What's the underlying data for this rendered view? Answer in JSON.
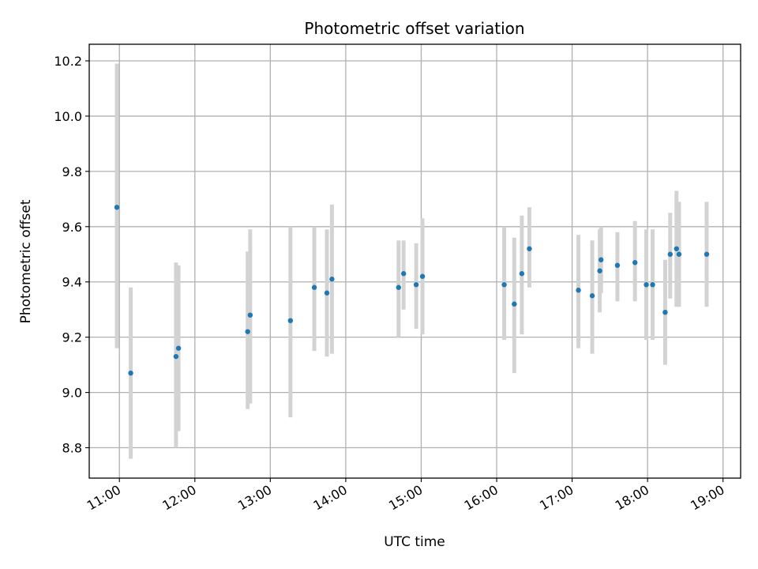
{
  "chart_data": {
    "type": "scatter",
    "title": "Photometric offset variation",
    "xlabel": "UTC time",
    "ylabel": "Photometric offset",
    "grid": true,
    "x_axis_type": "time",
    "xlim": [
      "10:36",
      "19:14"
    ],
    "ylim": [
      8.69,
      10.26
    ],
    "x_ticks": [
      "11:00",
      "12:00",
      "13:00",
      "14:00",
      "15:00",
      "16:00",
      "17:00",
      "18:00",
      "19:00"
    ],
    "y_ticks": [
      "8.8",
      "9.0",
      "9.2",
      "9.4",
      "9.6",
      "9.8",
      "10.0",
      "10.2"
    ],
    "colors": {
      "point": "#1f77b4",
      "errorbar": "#d3d3d3",
      "grid": "#b0b0b0"
    },
    "points": [
      {
        "x": "10:58",
        "y": 9.67,
        "ylow": 9.16,
        "yhigh": 10.19
      },
      {
        "x": "11:09",
        "y": 9.07,
        "ylow": 8.76,
        "yhigh": 9.38
      },
      {
        "x": "11:45",
        "y": 9.13,
        "ylow": 8.8,
        "yhigh": 9.47
      },
      {
        "x": "11:47",
        "y": 9.16,
        "ylow": 8.86,
        "yhigh": 9.46
      },
      {
        "x": "12:42",
        "y": 9.22,
        "ylow": 8.94,
        "yhigh": 9.51
      },
      {
        "x": "12:44",
        "y": 9.28,
        "ylow": 8.96,
        "yhigh": 9.59
      },
      {
        "x": "13:16",
        "y": 9.26,
        "ylow": 8.91,
        "yhigh": 9.6
      },
      {
        "x": "13:35",
        "y": 9.38,
        "ylow": 9.15,
        "yhigh": 9.6
      },
      {
        "x": "13:45",
        "y": 9.36,
        "ylow": 9.13,
        "yhigh": 9.59
      },
      {
        "x": "13:49",
        "y": 9.41,
        "ylow": 9.14,
        "yhigh": 9.68
      },
      {
        "x": "14:42",
        "y": 9.38,
        "ylow": 9.2,
        "yhigh": 9.55
      },
      {
        "x": "14:46",
        "y": 9.43,
        "ylow": 9.3,
        "yhigh": 9.55
      },
      {
        "x": "14:56",
        "y": 9.39,
        "ylow": 9.23,
        "yhigh": 9.54
      },
      {
        "x": "15:01",
        "y": 9.42,
        "ylow": 9.21,
        "yhigh": 9.63
      },
      {
        "x": "16:06",
        "y": 9.39,
        "ylow": 9.19,
        "yhigh": 9.6
      },
      {
        "x": "16:14",
        "y": 9.32,
        "ylow": 9.07,
        "yhigh": 9.56
      },
      {
        "x": "16:20",
        "y": 9.43,
        "ylow": 9.21,
        "yhigh": 9.64
      },
      {
        "x": "16:26",
        "y": 9.52,
        "ylow": 9.38,
        "yhigh": 9.67
      },
      {
        "x": "17:05",
        "y": 9.37,
        "ylow": 9.16,
        "yhigh": 9.57
      },
      {
        "x": "17:16",
        "y": 9.35,
        "ylow": 9.14,
        "yhigh": 9.55
      },
      {
        "x": "17:22",
        "y": 9.44,
        "ylow": 9.29,
        "yhigh": 9.59
      },
      {
        "x": "17:23",
        "y": 9.48,
        "ylow": 9.36,
        "yhigh": 9.6
      },
      {
        "x": "17:36",
        "y": 9.46,
        "ylow": 9.33,
        "yhigh": 9.58
      },
      {
        "x": "17:50",
        "y": 9.47,
        "ylow": 9.33,
        "yhigh": 9.62
      },
      {
        "x": "17:59",
        "y": 9.39,
        "ylow": 9.19,
        "yhigh": 9.59
      },
      {
        "x": "18:04",
        "y": 9.39,
        "ylow": 9.19,
        "yhigh": 9.59
      },
      {
        "x": "18:14",
        "y": 9.29,
        "ylow": 9.1,
        "yhigh": 9.48
      },
      {
        "x": "18:18",
        "y": 9.5,
        "ylow": 9.34,
        "yhigh": 9.65
      },
      {
        "x": "18:23",
        "y": 9.52,
        "ylow": 9.31,
        "yhigh": 9.73
      },
      {
        "x": "18:25",
        "y": 9.5,
        "ylow": 9.31,
        "yhigh": 9.69
      },
      {
        "x": "18:47",
        "y": 9.5,
        "ylow": 9.31,
        "yhigh": 9.69
      }
    ]
  }
}
